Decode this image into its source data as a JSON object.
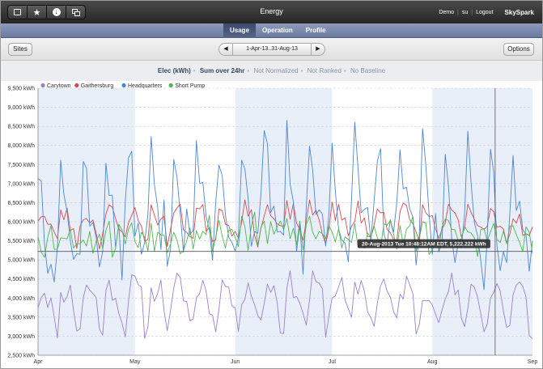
{
  "app": {
    "title": "Energy",
    "user": "Demo",
    "user_id": "su",
    "logout": "Logout",
    "brand": "SkySpark"
  },
  "toolbar_icons": [
    "window-icon",
    "star-icon",
    "download-icon",
    "copy-icon"
  ],
  "tabs": [
    {
      "label": "Usage",
      "active": true
    },
    {
      "label": "Operation",
      "active": false
    },
    {
      "label": "Profile",
      "active": false
    }
  ],
  "controls": {
    "sites_label": "Sites",
    "options_label": "Options",
    "date_range": "1-Apr-13..31-Aug-13"
  },
  "subtitle": {
    "measure": "Elec (kWh)",
    "aggregation": "Sum over 24hr",
    "normalize": "Not Normalized",
    "rank": "Not Ranked",
    "baseline": "No Baseline"
  },
  "tooltip": "20-Aug-2013 Tue 10:48:12AM EDT, 5,222.222 kWh",
  "chart_data": {
    "type": "line",
    "x_range": [
      "2013-04-01",
      "2013-09-01"
    ],
    "x_ticks": [
      "Apr",
      "May",
      "Jun",
      "Jul",
      "Aug",
      "Sep"
    ],
    "ylim": [
      2500,
      9500
    ],
    "y_ticks": [
      "2,500 kWh",
      "3,000 kWh",
      "3,500 kWh",
      "4,000 kWh",
      "4,500 kWh",
      "5,000 kWh",
      "5,500 kWh",
      "6,000 kWh",
      "6,500 kWh",
      "7,000 kWh",
      "7,500 kWh",
      "8,000 kWh",
      "8,500 kWh",
      "9,000 kWh",
      "9,500 kWh"
    ],
    "crosshair": {
      "date": "2013-08-20",
      "value": 5222.222
    },
    "grid": true,
    "legend_position": "top-left",
    "series": [
      {
        "name": "Carytown",
        "color": "#9b7fd0",
        "base": 3800,
        "amp": 500,
        "noise": 400,
        "seed": 11
      },
      {
        "name": "Gaithersburg",
        "color": "#d9484f",
        "base": 5900,
        "amp": 350,
        "noise": 300,
        "seed": 23
      },
      {
        "name": "Headquarters",
        "color": "#4f86d0",
        "base": 5800,
        "amp": 1900,
        "noise": 700,
        "seed": 37
      },
      {
        "name": "Short Pump",
        "color": "#4cb84c",
        "base": 5550,
        "amp": 500,
        "noise": 450,
        "seed": 53
      }
    ]
  }
}
